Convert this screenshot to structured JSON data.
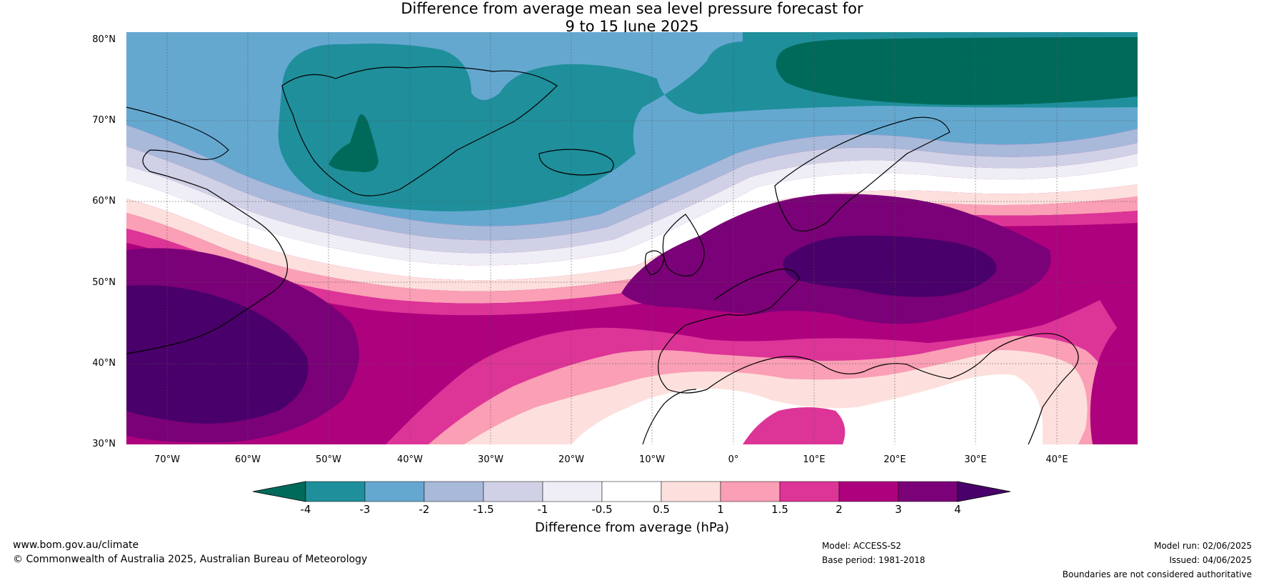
{
  "title": {
    "line1": "Difference from average mean sea level pressure forecast for",
    "line2": "9 to 15 June 2025"
  },
  "map": {
    "y_ticks": [
      "80°N",
      "70°N",
      "60°N",
      "50°N",
      "40°N",
      "30°N"
    ],
    "x_ticks": [
      "70°W",
      "60°W",
      "50°W",
      "40°W",
      "30°W",
      "20°W",
      "10°W",
      "0°",
      "10°E",
      "20°E",
      "30°E",
      "40°E"
    ],
    "lat_range": [
      30,
      81
    ],
    "lon_range": [
      -75,
      50
    ]
  },
  "colorbar": {
    "ticks": [
      "-4",
      "-3",
      "-2",
      "-1.5",
      "-1",
      "-0.5",
      "0.5",
      "1",
      "1.5",
      "2",
      "3",
      "4"
    ],
    "colors": [
      "#006a5a",
      "#1f8f9b",
      "#64a8d0",
      "#a8b9da",
      "#d0d1e6",
      "#efeef6",
      "#ffffff",
      "#fde0dd",
      "#fa9fb5",
      "#dd3497",
      "#ae017e",
      "#7a0177",
      "#49006a"
    ],
    "label": "Difference from average (hPa)"
  },
  "footer": {
    "website": "www.bom.gov.au/climate",
    "copyright": "© Commonwealth of Australia 2025, Australian Bureau of Meteorology",
    "model": "Model: ACCESS-S2",
    "base_period": "Base period: 1981-2018",
    "model_run": "Model run: 02/06/2025",
    "issued": "Issued: 04/06/2025",
    "boundaries": "Boundaries are not considered authoritative"
  }
}
